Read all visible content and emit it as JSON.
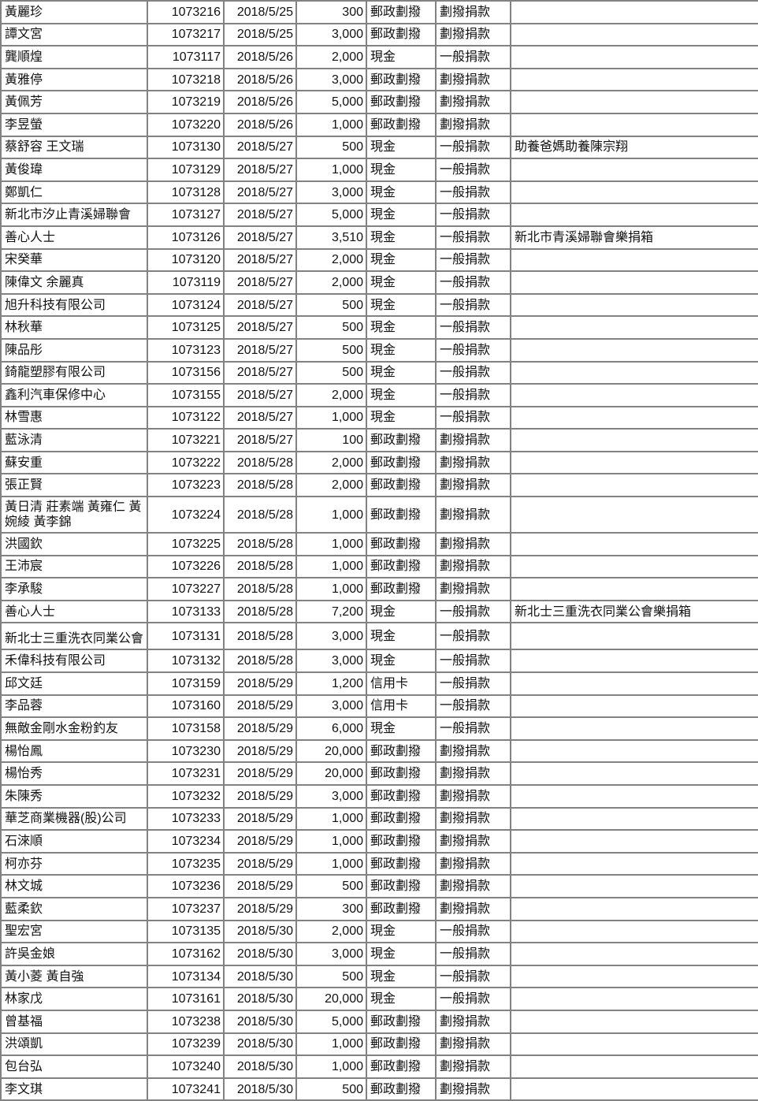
{
  "colors": {
    "table_border": "#828282",
    "text": "#111111",
    "background": "#ffffff"
  },
  "table": {
    "description_visible_columns": 7,
    "column_keys": [
      "donor-name",
      "receipt-number",
      "date",
      "amount",
      "payment-method",
      "donation-type",
      "note"
    ],
    "clipped_name_row_index": 27,
    "rows": [
      [
        "黃麗珍",
        "1073216",
        "2018/5/25",
        "300",
        "郵政劃撥",
        "劃撥捐款",
        ""
      ],
      [
        "譚文宮",
        "1073217",
        "2018/5/25",
        "3,000",
        "郵政劃撥",
        "劃撥捐款",
        ""
      ],
      [
        "龔順煌",
        "1073117",
        "2018/5/26",
        "2,000",
        "現金",
        "一般捐款",
        ""
      ],
      [
        "黃雅停",
        "1073218",
        "2018/5/26",
        "3,000",
        "郵政劃撥",
        "劃撥捐款",
        ""
      ],
      [
        "黃佩芳",
        "1073219",
        "2018/5/26",
        "5,000",
        "郵政劃撥",
        "劃撥捐款",
        ""
      ],
      [
        "李昱螢",
        "1073220",
        "2018/5/26",
        "1,000",
        "郵政劃撥",
        "劃撥捐款",
        ""
      ],
      [
        "蔡舒容 王文瑞",
        "1073130",
        "2018/5/27",
        "500",
        "現金",
        "一般捐款",
        "助養爸媽助養陳宗翔"
      ],
      [
        "黃俊瑋",
        "1073129",
        "2018/5/27",
        "1,000",
        "現金",
        "一般捐款",
        ""
      ],
      [
        "鄭凱仁",
        "1073128",
        "2018/5/27",
        "3,000",
        "現金",
        "一般捐款",
        ""
      ],
      [
        "新北市汐止青溪婦聯會",
        "1073127",
        "2018/5/27",
        "5,000",
        "現金",
        "一般捐款",
        ""
      ],
      [
        "善心人士",
        "1073126",
        "2018/5/27",
        "3,510",
        "現金",
        "一般捐款",
        "新北市青溪婦聯會樂捐箱"
      ],
      [
        "宋癸華",
        "1073120",
        "2018/5/27",
        "2,000",
        "現金",
        "一般捐款",
        ""
      ],
      [
        "陳偉文 余麗真",
        "1073119",
        "2018/5/27",
        "2,000",
        "現金",
        "一般捐款",
        ""
      ],
      [
        "旭升科技有限公司",
        "1073124",
        "2018/5/27",
        "500",
        "現金",
        "一般捐款",
        ""
      ],
      [
        "林秋華",
        "1073125",
        "2018/5/27",
        "500",
        "現金",
        "一般捐款",
        ""
      ],
      [
        "陳品彤",
        "1073123",
        "2018/5/27",
        "500",
        "現金",
        "一般捐款",
        ""
      ],
      [
        "錡龍塑膠有限公司",
        "1073156",
        "2018/5/27",
        "500",
        "現金",
        "一般捐款",
        ""
      ],
      [
        "鑫利汽車保修中心",
        "1073155",
        "2018/5/27",
        "2,000",
        "現金",
        "一般捐款",
        ""
      ],
      [
        "林雪惠",
        "1073122",
        "2018/5/27",
        "1,000",
        "現金",
        "一般捐款",
        ""
      ],
      [
        "藍泳清",
        "1073221",
        "2018/5/27",
        "100",
        "郵政劃撥",
        "劃撥捐款",
        ""
      ],
      [
        "蘇安重",
        "1073222",
        "2018/5/28",
        "2,000",
        "郵政劃撥",
        "劃撥捐款",
        ""
      ],
      [
        "張正賢",
        "1073223",
        "2018/5/28",
        "2,000",
        "郵政劃撥",
        "劃撥捐款",
        ""
      ],
      [
        "黃日清 莊素端 黃雍仁 黃婉綾 黃李錦",
        "1073224",
        "2018/5/28",
        "1,000",
        "郵政劃撥",
        "劃撥捐款",
        ""
      ],
      [
        "洪國欽",
        "1073225",
        "2018/5/28",
        "1,000",
        "郵政劃撥",
        "劃撥捐款",
        ""
      ],
      [
        "王沛宸",
        "1073226",
        "2018/5/28",
        "1,000",
        "郵政劃撥",
        "劃撥捐款",
        ""
      ],
      [
        "李承駿",
        "1073227",
        "2018/5/28",
        "1,000",
        "郵政劃撥",
        "劃撥捐款",
        ""
      ],
      [
        "善心人士",
        "1073133",
        "2018/5/28",
        "7,200",
        "現金",
        "一般捐款",
        "新北士三重洗衣同業公會樂捐箱"
      ],
      [
        "新北士三重洗衣同業公會",
        "1073131",
        "2018/5/28",
        "3,000",
        "現金",
        "一般捐款",
        ""
      ],
      [
        "禾偉科技有限公司",
        "1073132",
        "2018/5/28",
        "3,000",
        "現金",
        "一般捐款",
        ""
      ],
      [
        "邱文廷",
        "1073159",
        "2018/5/29",
        "1,200",
        "信用卡",
        "一般捐款",
        ""
      ],
      [
        "李品蓉",
        "1073160",
        "2018/5/29",
        "3,000",
        "信用卡",
        "一般捐款",
        ""
      ],
      [
        "無敵金剛水金粉釣友",
        "1073158",
        "2018/5/29",
        "6,000",
        "現金",
        "一般捐款",
        ""
      ],
      [
        "楊怡鳳",
        "1073230",
        "2018/5/29",
        "20,000",
        "郵政劃撥",
        "劃撥捐款",
        ""
      ],
      [
        "楊怡秀",
        "1073231",
        "2018/5/29",
        "20,000",
        "郵政劃撥",
        "劃撥捐款",
        ""
      ],
      [
        "朱陳秀",
        "1073232",
        "2018/5/29",
        "3,000",
        "郵政劃撥",
        "劃撥捐款",
        ""
      ],
      [
        "華芝商業機器(股)公司",
        "1073233",
        "2018/5/29",
        "1,000",
        "郵政劃撥",
        "劃撥捐款",
        ""
      ],
      [
        "石淶順",
        "1073234",
        "2018/5/29",
        "1,000",
        "郵政劃撥",
        "劃撥捐款",
        ""
      ],
      [
        "柯亦芬",
        "1073235",
        "2018/5/29",
        "1,000",
        "郵政劃撥",
        "劃撥捐款",
        ""
      ],
      [
        "林文城",
        "1073236",
        "2018/5/29",
        "500",
        "郵政劃撥",
        "劃撥捐款",
        ""
      ],
      [
        "藍柔欽",
        "1073237",
        "2018/5/29",
        "300",
        "郵政劃撥",
        "劃撥捐款",
        ""
      ],
      [
        "聖宏宮",
        "1073135",
        "2018/5/30",
        "2,000",
        "現金",
        "一般捐款",
        ""
      ],
      [
        "許吳金娘",
        "1073162",
        "2018/5/30",
        "3,000",
        "現金",
        "一般捐款",
        ""
      ],
      [
        "黃小菱 黃自強",
        "1073134",
        "2018/5/30",
        "500",
        "現金",
        "一般捐款",
        ""
      ],
      [
        "林家戊",
        "1073161",
        "2018/5/30",
        "20,000",
        "現金",
        "一般捐款",
        ""
      ],
      [
        "曾基福",
        "1073238",
        "2018/5/30",
        "5,000",
        "郵政劃撥",
        "劃撥捐款",
        ""
      ],
      [
        "洪頌凱",
        "1073239",
        "2018/5/30",
        "1,000",
        "郵政劃撥",
        "劃撥捐款",
        ""
      ],
      [
        "包台弘",
        "1073240",
        "2018/5/30",
        "1,000",
        "郵政劃撥",
        "劃撥捐款",
        ""
      ],
      [
        "李文琪",
        "1073241",
        "2018/5/30",
        "500",
        "郵政劃撥",
        "劃撥捐款",
        ""
      ]
    ]
  }
}
